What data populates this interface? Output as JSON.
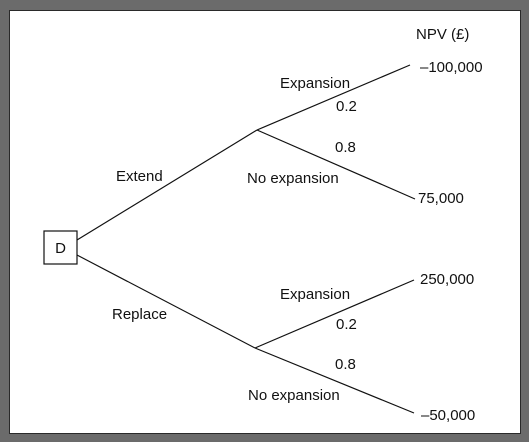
{
  "diagram": {
    "header": "NPV (£)",
    "decision_node": "D",
    "branches": [
      {
        "label": "Extend",
        "outcomes": [
          {
            "event": "Expansion",
            "probability": "0.2",
            "npv": "–100,000"
          },
          {
            "event": "No expansion",
            "probability": "0.8",
            "npv": "75,000"
          }
        ]
      },
      {
        "label": "Replace",
        "outcomes": [
          {
            "event": "Expansion",
            "probability": "0.2",
            "npv": "250,000"
          },
          {
            "event": "No expansion",
            "probability": "0.8",
            "npv": "–50,000"
          }
        ]
      }
    ]
  }
}
